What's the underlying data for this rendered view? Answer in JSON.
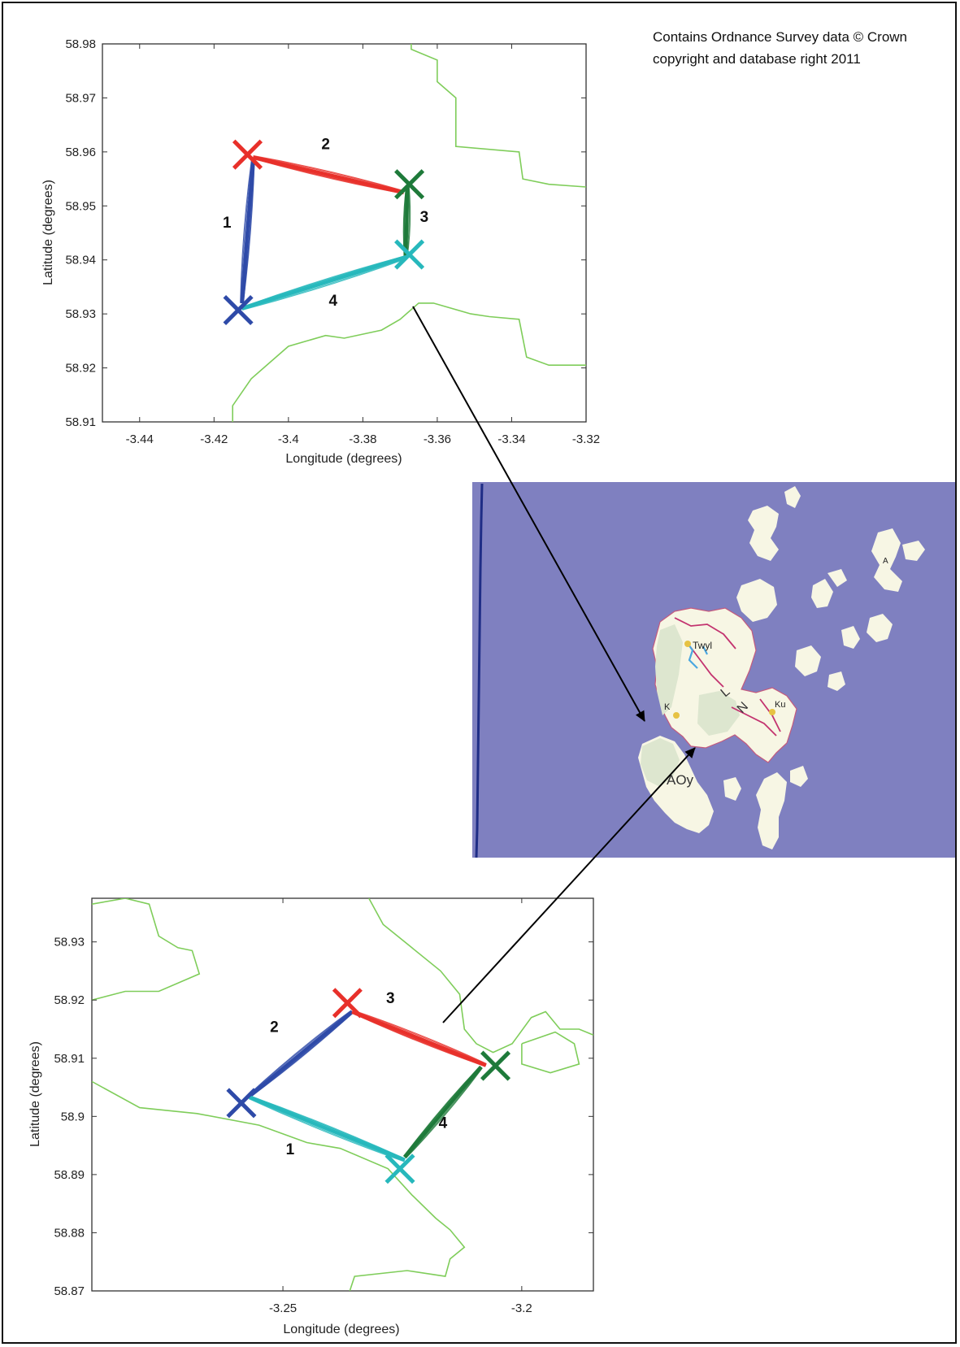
{
  "credit": {
    "line1": "Contains Ordnance Survey data © Crown",
    "line2": "copyright and database right 2011"
  },
  "colors": {
    "coastline": "#7fcd5a",
    "red": "#e8302a",
    "green": "#1e7a3a",
    "cyan": "#27b8bc",
    "blue": "#2e4aa8",
    "sea": "#7f80c0",
    "land": "#f7f6e4",
    "land_shaded": "#dde6cf"
  },
  "chart_data": [
    {
      "type": "line",
      "xlabel": "Longitude (degrees)",
      "ylabel": "Latitude (degrees)",
      "xlim": [
        -3.45,
        -3.32
      ],
      "ylim": [
        58.91,
        58.98
      ],
      "xticks": [
        -3.44,
        -3.42,
        -3.4,
        -3.38,
        -3.36,
        -3.34,
        -3.32
      ],
      "xtick_labels": [
        "-3.44",
        "-3.42",
        "-3.4",
        "-3.38",
        "-3.36",
        "-3.34",
        "-3.32"
      ],
      "yticks": [
        58.91,
        58.92,
        58.93,
        58.94,
        58.95,
        58.96,
        58.97,
        58.98
      ],
      "ytick_labels": [
        "58.91",
        "58.92",
        "58.93",
        "58.94",
        "58.95",
        "58.96",
        "58.97",
        "58.98"
      ],
      "markers": [
        {
          "color": "red",
          "x": -3.411,
          "y": 58.9595
        },
        {
          "color": "green",
          "x": -3.3675,
          "y": 58.954
        },
        {
          "color": "cyan",
          "x": -3.3675,
          "y": 58.941
        },
        {
          "color": "blue",
          "x": -3.4135,
          "y": 58.9307
        }
      ],
      "series": [
        {
          "label": "1",
          "color": "blue",
          "from": [
            -3.4125,
            58.932
          ],
          "to": [
            -3.4095,
            58.9585
          ],
          "label_at": [
            -3.4165,
            58.946
          ]
        },
        {
          "label": "2",
          "color": "red",
          "from": [
            -3.4095,
            58.959
          ],
          "to": [
            -3.369,
            58.9525
          ],
          "label_at": [
            -3.39,
            58.9605
          ]
        },
        {
          "label": "3",
          "color": "green",
          "from": [
            -3.368,
            58.9535
          ],
          "to": [
            -3.3685,
            58.9405
          ],
          "label_at": [
            -3.3635,
            58.947
          ]
        },
        {
          "label": "4",
          "color": "cyan",
          "from": [
            -3.3685,
            58.9405
          ],
          "to": [
            -3.4125,
            58.931
          ],
          "label_at": [
            -3.388,
            58.9315
          ]
        }
      ],
      "coastlines": [
        [
          [
            -3.367,
            58.98
          ],
          [
            -3.367,
            58.979
          ],
          [
            -3.36,
            58.977
          ],
          [
            -3.36,
            58.973
          ],
          [
            -3.355,
            58.97
          ],
          [
            -3.355,
            58.961
          ],
          [
            -3.338,
            58.96
          ],
          [
            -3.337,
            58.955
          ],
          [
            -3.33,
            58.954
          ],
          [
            -3.32,
            58.9535
          ]
        ],
        [
          [
            -3.415,
            58.91
          ],
          [
            -3.415,
            58.913
          ],
          [
            -3.41,
            58.918
          ],
          [
            -3.405,
            58.921
          ],
          [
            -3.4,
            58.924
          ],
          [
            -3.39,
            58.926
          ],
          [
            -3.385,
            58.9255
          ],
          [
            -3.375,
            58.927
          ],
          [
            -3.37,
            58.929
          ],
          [
            -3.365,
            58.932
          ],
          [
            -3.361,
            58.932
          ],
          [
            -3.351,
            58.93
          ],
          [
            -3.346,
            58.9295
          ],
          [
            -3.338,
            58.929
          ],
          [
            -3.336,
            58.922
          ],
          [
            -3.33,
            58.9205
          ],
          [
            -3.32,
            58.9205
          ]
        ]
      ]
    },
    {
      "type": "line",
      "xlabel": "Longitude (degrees)",
      "ylabel": "Latitude (degrees)",
      "xlim": [
        -3.29,
        -3.185
      ],
      "ylim": [
        58.87,
        58.9375
      ],
      "xticks": [
        -3.25,
        -3.2
      ],
      "xtick_labels": [
        "-3.25",
        "-3.2"
      ],
      "yticks": [
        58.87,
        58.88,
        58.89,
        58.9,
        58.91,
        58.92,
        58.93
      ],
      "ytick_labels": [
        "58.87",
        "58.88",
        "58.89",
        "58.9",
        "58.91",
        "58.92",
        "58.93"
      ],
      "markers": [
        {
          "color": "red",
          "x": -3.2365,
          "y": 58.9195
        },
        {
          "color": "green",
          "x": -3.2055,
          "y": 58.9087
        },
        {
          "color": "cyan",
          "x": -3.2255,
          "y": 58.891
        },
        {
          "color": "blue",
          "x": -3.2587,
          "y": 58.9023
        }
      ],
      "series": [
        {
          "label": "2",
          "color": "blue",
          "from": [
            -3.257,
            58.9035
          ],
          "to": [
            -3.2355,
            58.918
          ],
          "label_at": [
            -3.2518,
            58.9145
          ]
        },
        {
          "label": "3",
          "color": "red",
          "from": [
            -3.2355,
            58.918
          ],
          "to": [
            -3.2075,
            58.9088
          ],
          "label_at": [
            -3.2275,
            58.9195
          ]
        },
        {
          "label": "4",
          "color": "green",
          "from": [
            -3.2085,
            58.9085
          ],
          "to": [
            -3.2245,
            58.893
          ],
          "label_at": [
            -3.2165,
            58.898
          ]
        },
        {
          "label": "1",
          "color": "cyan",
          "from": [
            -3.2245,
            58.8925
          ],
          "to": [
            -3.257,
            58.9033
          ],
          "label_at": [
            -3.2485,
            58.8935
          ]
        }
      ],
      "coastlines": [
        [
          [
            -3.29,
            58.9365
          ],
          [
            -3.283,
            58.9375
          ],
          [
            -3.278,
            58.9365
          ],
          [
            -3.276,
            58.931
          ],
          [
            -3.272,
            58.929
          ],
          [
            -3.269,
            58.9285
          ],
          [
            -3.2675,
            58.9245
          ],
          [
            -3.276,
            58.9215
          ],
          [
            -3.283,
            58.9215
          ],
          [
            -3.29,
            58.92
          ]
        ],
        [
          [
            -3.232,
            58.9375
          ],
          [
            -3.229,
            58.933
          ],
          [
            -3.223,
            58.929
          ],
          [
            -3.217,
            58.925
          ],
          [
            -3.213,
            58.921
          ],
          [
            -3.212,
            58.915
          ],
          [
            -3.2095,
            58.9125
          ],
          [
            -3.206,
            58.911
          ],
          [
            -3.202,
            58.9125
          ],
          [
            -3.198,
            58.917
          ],
          [
            -3.195,
            58.918
          ],
          [
            -3.192,
            58.915
          ],
          [
            -3.188,
            58.915
          ],
          [
            -3.185,
            58.914
          ]
        ],
        [
          [
            -3.2,
            58.9125
          ],
          [
            -3.193,
            58.9145
          ],
          [
            -3.189,
            58.9125
          ],
          [
            -3.188,
            58.909
          ],
          [
            -3.194,
            58.9075
          ],
          [
            -3.2,
            58.909
          ],
          [
            -3.2,
            58.9125
          ]
        ],
        [
          [
            -3.29,
            58.906
          ],
          [
            -3.28,
            58.9015
          ],
          [
            -3.268,
            58.9005
          ],
          [
            -3.255,
            58.8985
          ],
          [
            -3.245,
            58.8955
          ],
          [
            -3.238,
            58.8945
          ],
          [
            -3.228,
            58.891
          ],
          [
            -3.223,
            58.8865
          ],
          [
            -3.218,
            58.8825
          ],
          [
            -3.215,
            58.8805
          ],
          [
            -3.212,
            58.8775
          ],
          [
            -3.215,
            58.8755
          ],
          [
            -3.216,
            58.8725
          ],
          [
            -3.224,
            58.8735
          ],
          [
            -3.235,
            58.8725
          ],
          [
            -3.236,
            58.87
          ]
        ]
      ]
    }
  ],
  "inset_map": {
    "labels": [
      {
        "text": "Twyl"
      },
      {
        "text": "AOy"
      },
      {
        "text": "K"
      },
      {
        "text": "Ku"
      },
      {
        "text": "N"
      },
      {
        "text": "L"
      },
      {
        "text": "A"
      }
    ]
  }
}
